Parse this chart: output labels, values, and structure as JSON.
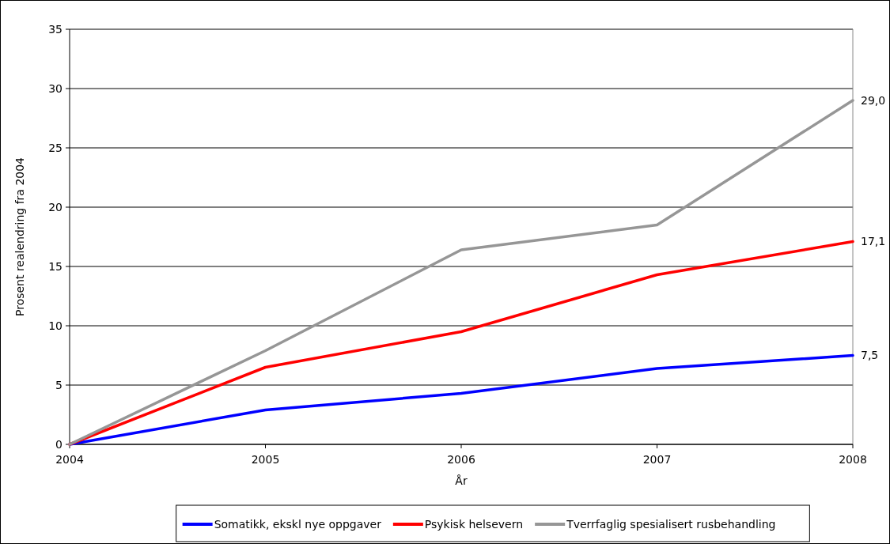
{
  "chart_data": {
    "type": "line",
    "xlabel": "År",
    "ylabel": "Prosent realendring fra 2004",
    "x": [
      2004,
      2005,
      2006,
      2007,
      2008
    ],
    "xlim": [
      2004,
      2008
    ],
    "xticks": [
      2004,
      2005,
      2006,
      2007,
      2008
    ],
    "ylim": [
      0,
      35
    ],
    "yticks": [
      0,
      5,
      10,
      15,
      20,
      25,
      30,
      35
    ],
    "grid": "y",
    "legend": "bottom",
    "marker": "none",
    "line_style": "solid",
    "series": [
      {
        "name": "Somatikk, ekskl nye oppgaver",
        "color": "#0000ff",
        "values": [
          0,
          2.9,
          4.3,
          6.4,
          7.5
        ],
        "value_labels": [
          null,
          null,
          null,
          null,
          "7,5"
        ]
      },
      {
        "name": "Psykisk helsevern",
        "color": "#ff0000",
        "values": [
          0,
          6.5,
          9.5,
          14.3,
          17.1
        ],
        "value_labels": [
          null,
          null,
          null,
          null,
          "17,1"
        ]
      },
      {
        "name": "Tverrfaglig spesialisert rusbehandling",
        "color": "#969696",
        "values": [
          0,
          7.9,
          16.4,
          18.5,
          29.0
        ],
        "value_labels": [
          null,
          null,
          null,
          null,
          "29,0"
        ]
      }
    ]
  }
}
